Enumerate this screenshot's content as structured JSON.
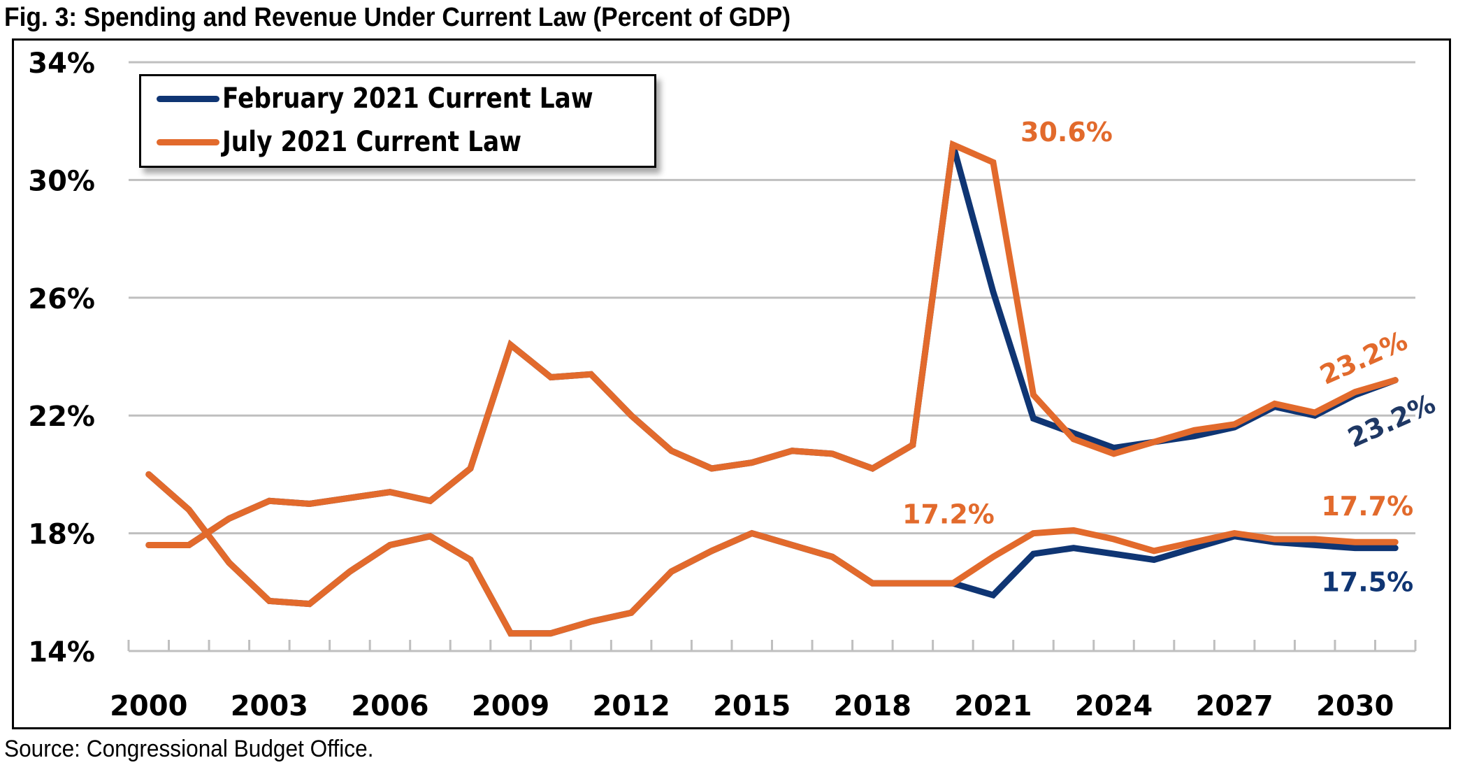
{
  "chart_data": {
    "type": "line",
    "title": "Fig. 3: Spending and Revenue Under Current Law (Percent of GDP)",
    "xlabel": "",
    "ylabel": "",
    "x": [
      2000,
      2001,
      2002,
      2003,
      2004,
      2005,
      2006,
      2007,
      2008,
      2009,
      2010,
      2011,
      2012,
      2013,
      2014,
      2015,
      2016,
      2017,
      2018,
      2019,
      2020,
      2021,
      2022,
      2023,
      2024,
      2025,
      2026,
      2027,
      2028,
      2029,
      2030,
      2031
    ],
    "x_tick_labels": [
      "2000",
      "2003",
      "2006",
      "2009",
      "2012",
      "2015",
      "2018",
      "2021",
      "2024",
      "2027",
      "2030"
    ],
    "y_tick_labels": [
      "34%",
      "30%",
      "26%",
      "22%",
      "18%",
      "14%"
    ],
    "y_ticks": [
      34,
      30,
      26,
      22,
      18,
      14
    ],
    "ylim": [
      14,
      34
    ],
    "grid": "horizontal",
    "legend_position": "top-left",
    "series": [
      {
        "name": "February 2021 Current Law",
        "color": "#0f3573",
        "group": "spending",
        "values": [
          17.6,
          17.6,
          18.5,
          19.1,
          19.0,
          19.2,
          19.4,
          19.1,
          20.2,
          24.4,
          23.3,
          23.4,
          22.0,
          20.8,
          20.2,
          20.4,
          20.8,
          20.7,
          20.2,
          21.0,
          31.2,
          26.2,
          21.9,
          21.4,
          20.9,
          21.1,
          21.3,
          21.6,
          22.3,
          22.0,
          22.7,
          23.2
        ]
      },
      {
        "name": "February 2021 Current Law",
        "color": "#0f3573",
        "group": "revenue",
        "values": [
          20.0,
          18.8,
          17.0,
          15.7,
          15.6,
          16.7,
          17.6,
          17.9,
          17.1,
          14.6,
          14.6,
          15.0,
          15.3,
          16.7,
          17.4,
          18.0,
          17.6,
          17.2,
          16.3,
          16.3,
          16.3,
          15.9,
          17.3,
          17.5,
          17.3,
          17.1,
          17.5,
          17.9,
          17.7,
          17.6,
          17.5,
          17.5
        ]
      },
      {
        "name": "July 2021 Current Law",
        "color": "#e26a2c",
        "group": "spending",
        "values": [
          17.6,
          17.6,
          18.5,
          19.1,
          19.0,
          19.2,
          19.4,
          19.1,
          20.2,
          24.4,
          23.3,
          23.4,
          22.0,
          20.8,
          20.2,
          20.4,
          20.8,
          20.7,
          20.2,
          21.0,
          31.2,
          30.6,
          22.7,
          21.2,
          20.7,
          21.1,
          21.5,
          21.7,
          22.4,
          22.1,
          22.8,
          23.2
        ]
      },
      {
        "name": "July 2021 Current Law",
        "color": "#e26a2c",
        "group": "revenue",
        "values": [
          20.0,
          18.8,
          17.0,
          15.7,
          15.6,
          16.7,
          17.6,
          17.9,
          17.1,
          14.6,
          14.6,
          15.0,
          15.3,
          16.7,
          17.4,
          18.0,
          17.6,
          17.2,
          16.3,
          16.3,
          16.3,
          17.2,
          18.0,
          18.1,
          17.8,
          17.4,
          17.7,
          18.0,
          17.8,
          17.8,
          17.7,
          17.7
        ]
      }
    ],
    "legend": [
      {
        "label": "February 2021 Current Law",
        "color": "#0f3573"
      },
      {
        "label": "July 2021 Current Law",
        "color": "#e26a2c"
      }
    ],
    "annotations": [
      {
        "text": "30.6%",
        "x": 2021,
        "y": 30.6,
        "color": "#e26a2c"
      },
      {
        "text": "17.2%",
        "x": 2021,
        "y": 17.2,
        "color": "#e26a2c"
      },
      {
        "text": "23.2%",
        "x": 2031,
        "y": 23.2,
        "color": "#e26a2c"
      },
      {
        "text": "23.2%",
        "x": 2031,
        "y": 23.2,
        "color": "#1f3864"
      },
      {
        "text": "17.7%",
        "x": 2031,
        "y": 17.7,
        "color": "#e26a2c"
      },
      {
        "text": "17.5%",
        "x": 2031,
        "y": 17.5,
        "color": "#0f3573"
      }
    ],
    "source": "Source: Congressional Budget Office."
  }
}
